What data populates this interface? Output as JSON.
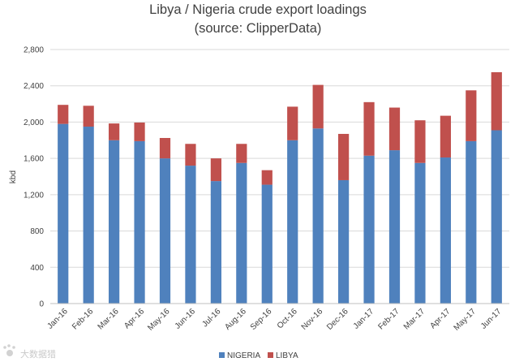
{
  "chart_data": {
    "type": "bar",
    "stacked": true,
    "title": [
      "Libya / Nigeria crude export loadings",
      "(source: ClipperData)"
    ],
    "xlabel": "",
    "ylabel": "kbd",
    "ylim": [
      0,
      2800
    ],
    "yticks": [
      0,
      400,
      800,
      1200,
      1600,
      2000,
      2400,
      2800
    ],
    "ytick_labels": [
      "0",
      "400",
      "800",
      "1,200",
      "1,600",
      "2,000",
      "2,400",
      "2,800"
    ],
    "grid": true,
    "legend_position": "bottom-center",
    "categories": [
      "Jan-16",
      "Feb-16",
      "Mar-16",
      "Apr-16",
      "May-16",
      "Jun-16",
      "Jul-16",
      "Aug-16",
      "Sep-16",
      "Oct-16",
      "Nov-16",
      "Dec-16",
      "Jan-17",
      "Feb-17",
      "Mar-17",
      "Apr-17",
      "May-17",
      "Jun-17"
    ],
    "series": [
      {
        "name": "NIGERIA",
        "color": "#4f81bd",
        "values": [
          1980,
          1950,
          1800,
          1790,
          1600,
          1520,
          1350,
          1550,
          1310,
          1800,
          1930,
          1360,
          1630,
          1690,
          1550,
          1610,
          1790,
          1910
        ]
      },
      {
        "name": "LIBYA",
        "color": "#c0504d",
        "values": [
          210,
          230,
          185,
          205,
          225,
          240,
          250,
          210,
          160,
          370,
          480,
          510,
          590,
          470,
          470,
          460,
          560,
          640
        ]
      }
    ]
  },
  "watermark": {
    "text": "大数据猎",
    "icon": "paw-logo-icon"
  }
}
